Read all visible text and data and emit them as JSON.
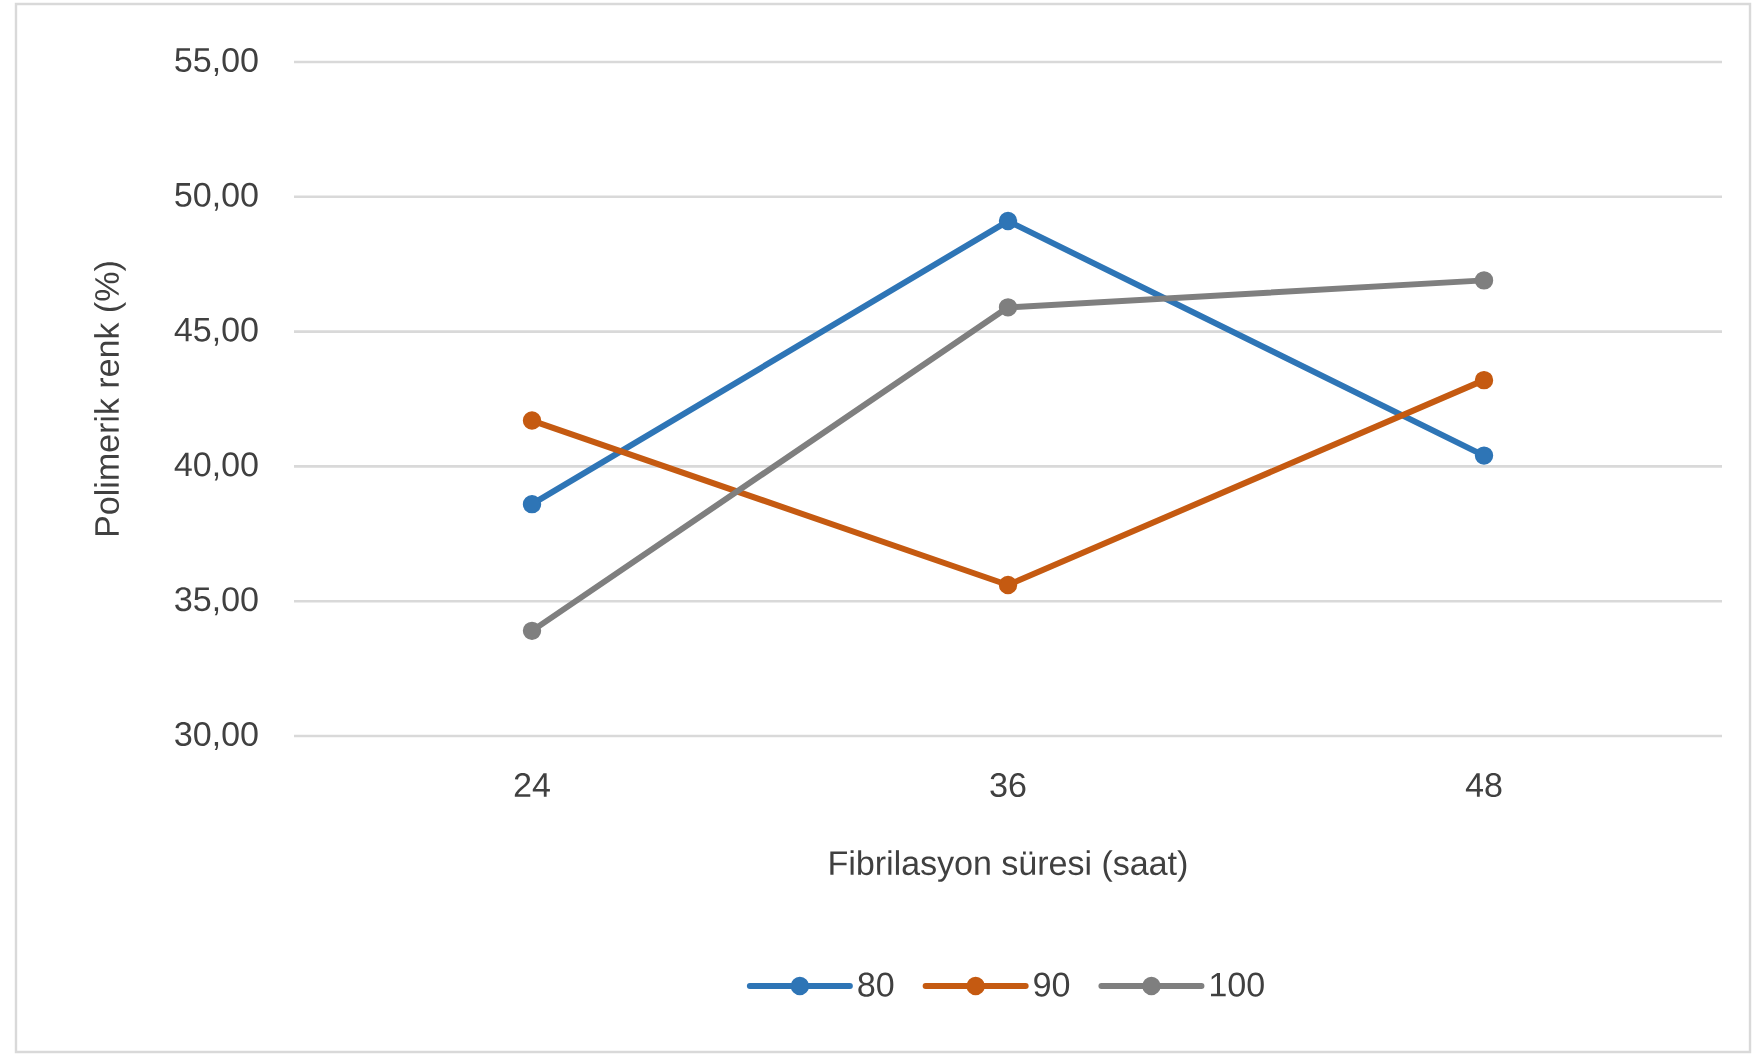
{
  "chart_data": {
    "type": "line",
    "xlabel": "Fibrilasyon süresi (saat)",
    "ylabel": "Polimerik renk (%)",
    "categories": [
      "24",
      "36",
      "48"
    ],
    "series": [
      {
        "name": "80",
        "color": "#2e75b6",
        "values": [
          38.6,
          49.1,
          40.4
        ]
      },
      {
        "name": "90",
        "color": "#c55a11",
        "values": [
          41.7,
          35.6,
          43.2
        ]
      },
      {
        "name": "100",
        "color": "#7f7f7f",
        "values": [
          33.9,
          45.9,
          46.9
        ]
      }
    ],
    "ylim": [
      30,
      55
    ],
    "yticks": [
      {
        "value": 30,
        "label": "30,00"
      },
      {
        "value": 35,
        "label": "35,00"
      },
      {
        "value": 40,
        "label": "40,00"
      },
      {
        "value": 45,
        "label": "45,00"
      },
      {
        "value": 50,
        "label": "50,00"
      },
      {
        "value": 55,
        "label": "55,00"
      }
    ],
    "grid": "y",
    "legend": "bottom",
    "marker": "circle",
    "line_style": "solid"
  }
}
